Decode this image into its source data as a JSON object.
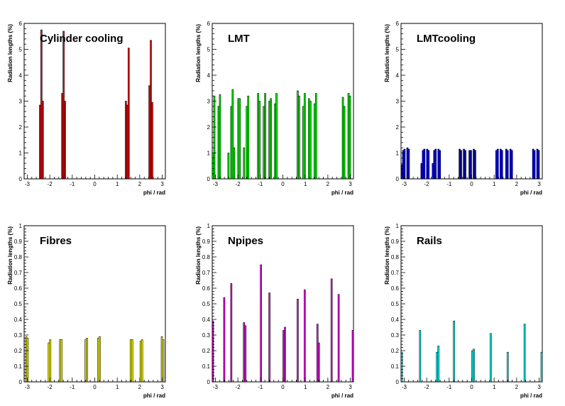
{
  "chart_data": [
    {
      "type": "bar",
      "title": "Cylinder cooling",
      "xlabel": "phi / rad",
      "ylabel": "Radiation lengths (%)",
      "xlim": [
        -3.14,
        3.14
      ],
      "ylim": [
        0,
        6
      ],
      "xticks": [
        "-3",
        "-2",
        "-1",
        "0",
        "1",
        "2",
        "3"
      ],
      "yticks": [
        "0",
        "1",
        "2",
        "3",
        "4",
        "5",
        "6"
      ],
      "color": "#ff0000",
      "bins": 100,
      "values": [
        0,
        0,
        0,
        0,
        0,
        0,
        0,
        0,
        0,
        0,
        0,
        2.85,
        5.75,
        3.0,
        0,
        0,
        0,
        0,
        0,
        0,
        0,
        0,
        0,
        0,
        0,
        0,
        0,
        3.3,
        5.7,
        3.0,
        0,
        0,
        0,
        0,
        0,
        0,
        0,
        0,
        0,
        0,
        0,
        0,
        0,
        0,
        0,
        0,
        0,
        0,
        0,
        0,
        0,
        0,
        0,
        0,
        0,
        0,
        0,
        0,
        0,
        0,
        0,
        0,
        0,
        0,
        0,
        0,
        0,
        0,
        0,
        0,
        0,
        0,
        0,
        3.0,
        2.85,
        5.05,
        0,
        0,
        0,
        0,
        0,
        0,
        0,
        0,
        0,
        0,
        0,
        0,
        0,
        0,
        3.6,
        5.35,
        2.95,
        0,
        0,
        0,
        0,
        0,
        0,
        0,
        0,
        0
      ]
    },
    {
      "type": "bar",
      "title": "LMT",
      "xlabel": "phi / rad",
      "ylabel": "Radiation lengths (%)",
      "xlim": [
        -3.14,
        3.14
      ],
      "ylim": [
        0,
        6
      ],
      "xticks": [
        "-3",
        "-2",
        "-1",
        "0",
        "1",
        "2",
        "3"
      ],
      "yticks": [
        "0",
        "1",
        "2",
        "3",
        "4",
        "5",
        "6"
      ],
      "color": "#00ff00",
      "bins": 100,
      "values": [
        1.0,
        3.2,
        0,
        0,
        2.8,
        3.25,
        0,
        0,
        0,
        0,
        0,
        1.0,
        0,
        2.8,
        3.45,
        1.2,
        0,
        0,
        3.1,
        3.1,
        0,
        0,
        1.2,
        0,
        2.8,
        3.2,
        0,
        0,
        0,
        0,
        0,
        0,
        3.3,
        3.0,
        0,
        0,
        2.8,
        3.3,
        0,
        0,
        3.0,
        3.1,
        0,
        0,
        2.9,
        3.3,
        0,
        0,
        0,
        0,
        0,
        0,
        0,
        0,
        0,
        0,
        0,
        0,
        0,
        0,
        3.4,
        3.2,
        0,
        0,
        2.8,
        3.3,
        0,
        0,
        3.1,
        3.0,
        0,
        0,
        2.9,
        3.3,
        0,
        0,
        0,
        0,
        0,
        0,
        0,
        0,
        0,
        0,
        0,
        0,
        0,
        0,
        0,
        0,
        0,
        0,
        3.15,
        2.8,
        0,
        0,
        3.3,
        3.2,
        0,
        0
      ]
    },
    {
      "type": "bar",
      "title": "LMTcooling",
      "xlabel": "phi / rad",
      "ylabel": "Radiation lengths (%)",
      "xlim": [
        -3.14,
        3.14
      ],
      "ylim": [
        0,
        6
      ],
      "xticks": [
        "-3",
        "-2",
        "-1",
        "0",
        "1",
        "2",
        "3"
      ],
      "yticks": [
        "0",
        "1",
        "2",
        "3",
        "4",
        "5",
        "6"
      ],
      "color": "#0000ff",
      "bins": 100,
      "values": [
        0.55,
        1.1,
        1.15,
        0,
        1.2,
        1.15,
        0,
        0,
        0,
        0,
        0,
        0,
        0,
        0,
        0.6,
        1.1,
        1.15,
        0,
        1.15,
        1.1,
        0,
        0,
        0.6,
        1.1,
        1.15,
        0,
        1.15,
        1.1,
        0,
        0,
        0,
        0,
        0,
        0,
        0,
        0,
        0,
        0,
        0,
        0,
        0,
        1.15,
        1.1,
        0,
        1.15,
        1.1,
        0,
        0,
        1.1,
        1.1,
        0,
        1.15,
        1.1,
        0,
        0,
        0,
        0,
        0,
        0,
        0,
        0,
        0,
        0,
        0,
        0,
        0,
        0,
        1.1,
        1.15,
        0,
        1.15,
        1.1,
        0,
        0,
        1.15,
        1.1,
        0,
        1.15,
        1.1,
        0,
        0,
        0,
        0,
        0,
        0,
        0,
        0,
        0,
        0,
        0,
        0,
        0,
        0,
        1.15,
        1.1,
        0,
        1.15,
        1.1,
        0,
        0
      ]
    },
    {
      "type": "bar",
      "title": "Fibres",
      "xlabel": "phi / rad",
      "ylabel": "Radiation lengths (%)",
      "xlim": [
        -3.14,
        3.14
      ],
      "ylim": [
        0,
        1
      ],
      "xticks": [
        "-3",
        "-2",
        "-1",
        "0",
        "1",
        "2",
        "3"
      ],
      "yticks": [
        "0",
        "0.1",
        "0.2",
        "0.3",
        "0.4",
        "0.5",
        "0.6",
        "0.7",
        "0.8",
        "0.9",
        "1"
      ],
      "color": "#ffff00",
      "bins": 100,
      "values": [
        0,
        0.29,
        0.28,
        0,
        0,
        0,
        0,
        0,
        0,
        0,
        0,
        0,
        0,
        0,
        0,
        0,
        0,
        0.25,
        0.27,
        0,
        0,
        0,
        0,
        0,
        0,
        0.27,
        0.27,
        0,
        0,
        0,
        0,
        0,
        0,
        0,
        0,
        0,
        0,
        0,
        0,
        0,
        0,
        0,
        0,
        0.27,
        0.28,
        0,
        0,
        0,
        0,
        0,
        0,
        0,
        0.28,
        0.29,
        0,
        0,
        0,
        0,
        0,
        0,
        0,
        0,
        0,
        0,
        0,
        0,
        0,
        0,
        0,
        0,
        0,
        0,
        0,
        0,
        0,
        0.27,
        0.27,
        0,
        0,
        0,
        0,
        0,
        0.26,
        0.27,
        0,
        0,
        0,
        0,
        0,
        0,
        0,
        0,
        0,
        0,
        0,
        0,
        0,
        0.29,
        0.27,
        0
      ]
    },
    {
      "type": "bar",
      "title": "Npipes",
      "xlabel": "phi / rad",
      "ylabel": "Radiation lengths (%)",
      "xlim": [
        -3.14,
        3.14
      ],
      "ylim": [
        0,
        1
      ],
      "xticks": [
        "-3",
        "-2",
        "-1",
        "0",
        "1",
        "2",
        "3"
      ],
      "yticks": [
        "0",
        "0.1",
        "0.2",
        "0.3",
        "0.4",
        "0.5",
        "0.6",
        "0.7",
        "0.8",
        "0.9",
        "1"
      ],
      "color": "#ff00ff",
      "bins": 100,
      "values": [
        0.39,
        0,
        0,
        0,
        0,
        0,
        0,
        0,
        0.54,
        0,
        0,
        0,
        0,
        0.63,
        0,
        0,
        0,
        0,
        0,
        0,
        0,
        0,
        0.38,
        0.36,
        0,
        0,
        0,
        0,
        0,
        0,
        0,
        0,
        0,
        0,
        0.75,
        0,
        0,
        0,
        0,
        0,
        0.57,
        0,
        0,
        0,
        0,
        0,
        0,
        0,
        0,
        0,
        0.33,
        0.35,
        0,
        0,
        0,
        0,
        0,
        0,
        0,
        0,
        0.53,
        0,
        0,
        0,
        0,
        0.59,
        0,
        0,
        0,
        0,
        0,
        0,
        0,
        0,
        0.37,
        0.25,
        0,
        0,
        0,
        0,
        0,
        0,
        0,
        0,
        0.66,
        0,
        0,
        0,
        0,
        0.56,
        0,
        0,
        0,
        0,
        0,
        0,
        0,
        0,
        0,
        0.33
      ]
    },
    {
      "type": "bar",
      "title": "Rails",
      "xlabel": "phi / rad",
      "ylabel": "Radiation lengths (%)",
      "xlim": [
        -3.14,
        3.14
      ],
      "ylim": [
        0,
        1
      ],
      "xticks": [
        "-3",
        "-2",
        "-1",
        "0",
        "1",
        "2",
        "3"
      ],
      "yticks": [
        "0",
        "0.1",
        "0.2",
        "0.3",
        "0.4",
        "0.5",
        "0.6",
        "0.7",
        "0.8",
        "0.9",
        "1"
      ],
      "color": "#00ffff",
      "bins": 100,
      "values": [
        0.19,
        0,
        0,
        0,
        0,
        0,
        0,
        0,
        0,
        0,
        0,
        0,
        0,
        0.33,
        0,
        0,
        0,
        0,
        0,
        0,
        0,
        0,
        0,
        0,
        0,
        0.19,
        0.23,
        0,
        0,
        0,
        0,
        0,
        0,
        0,
        0,
        0,
        0,
        0.39,
        0,
        0,
        0,
        0,
        0,
        0,
        0,
        0,
        0,
        0,
        0,
        0,
        0.2,
        0.21,
        0,
        0,
        0,
        0,
        0,
        0,
        0,
        0,
        0,
        0,
        0,
        0.31,
        0,
        0,
        0,
        0,
        0,
        0,
        0,
        0,
        0,
        0,
        0,
        0.19,
        0,
        0,
        0,
        0,
        0,
        0,
        0,
        0,
        0,
        0,
        0,
        0.37,
        0,
        0,
        0,
        0,
        0,
        0,
        0,
        0,
        0,
        0,
        0,
        0.19
      ]
    }
  ]
}
